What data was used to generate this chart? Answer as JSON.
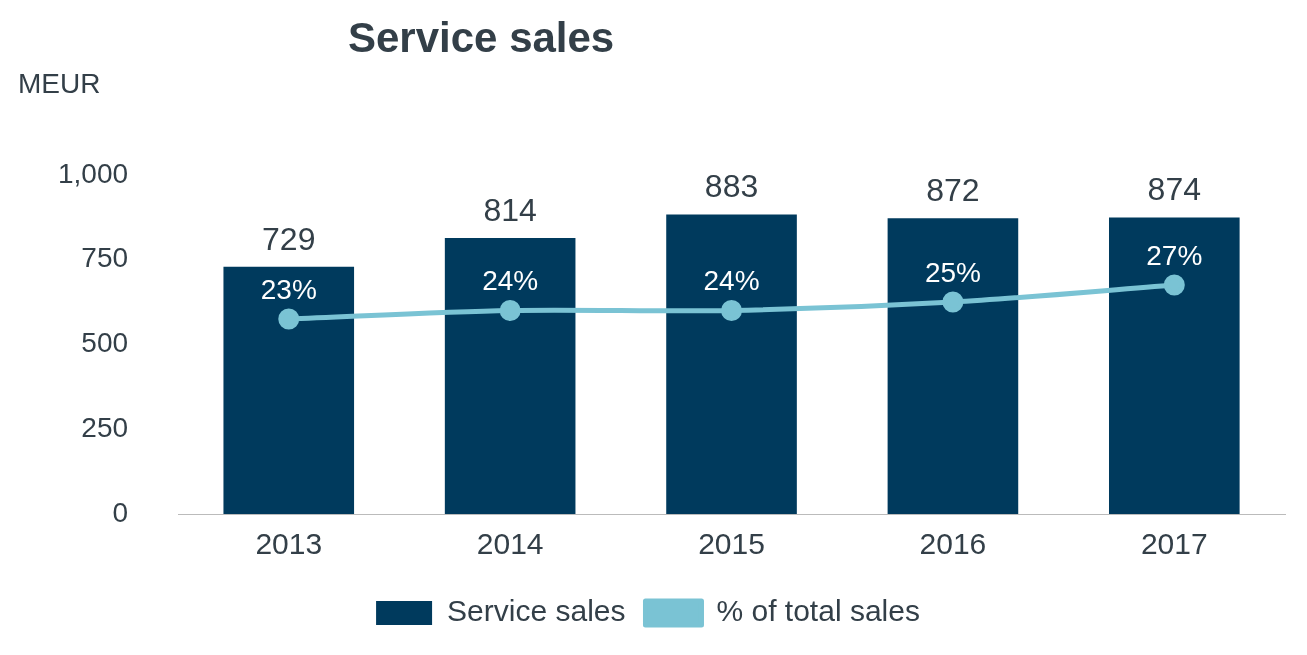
{
  "chart_data": {
    "type": "bar",
    "title": "Service sales",
    "ylabel": "MEUR",
    "categories": [
      "2013",
      "2014",
      "2015",
      "2016",
      "2017"
    ],
    "series": [
      {
        "name": "Service sales",
        "color": "#003a5d",
        "values": [
          729,
          814,
          883,
          872,
          874
        ]
      },
      {
        "name": "% of total sales",
        "type": "line",
        "axis": "y2",
        "color": "#7ac3d4",
        "values": [
          23,
          24,
          24,
          25,
          27
        ],
        "value_labels": [
          "23%",
          "24%",
          "24%",
          "25%",
          "27%"
        ]
      }
    ],
    "ylim": [
      0,
      1000
    ],
    "yticks": [
      0,
      250,
      500,
      750,
      {
        "value": 1000,
        "label": "1,000"
      }
    ],
    "tick_labels": "xy",
    "grid": false,
    "legend": "bottom",
    "marker": "circle",
    "line_style": "solid",
    "data_labels": true
  }
}
